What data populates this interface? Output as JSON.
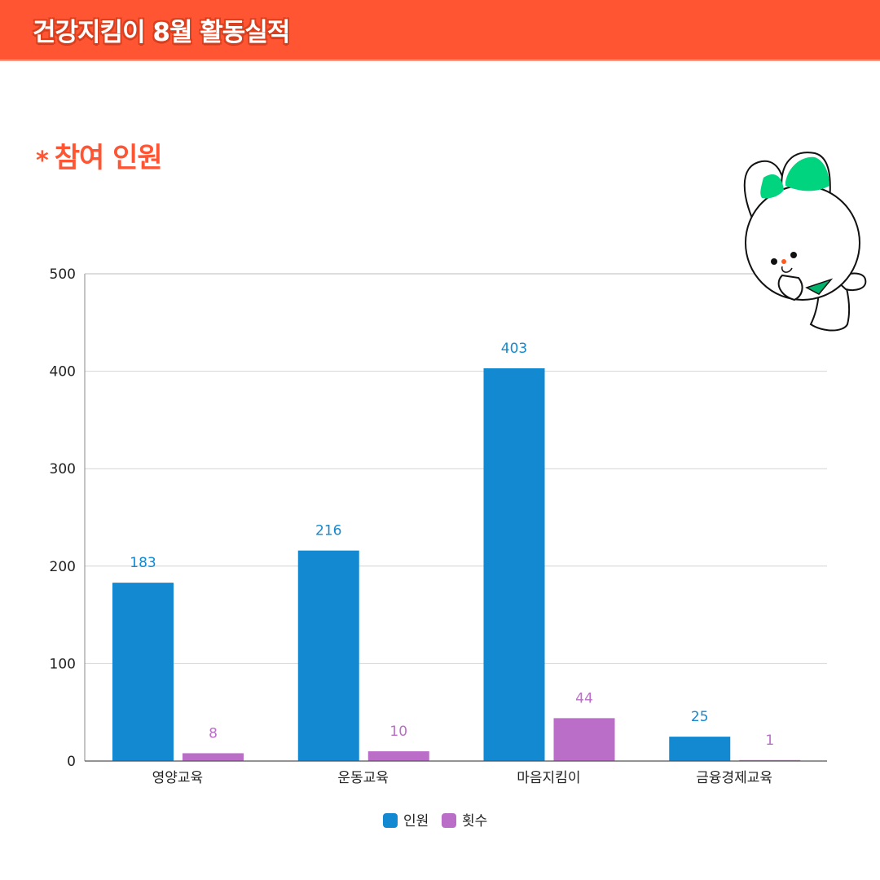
{
  "header": {
    "title": "건강지킴이 8월 활동실적"
  },
  "section": {
    "bullet": "*",
    "title": "참여 인원"
  },
  "colors": {
    "banner": "#ff5533",
    "series_people": "#1289d1",
    "series_count": "#bb6ec8"
  },
  "chart_data": {
    "type": "bar",
    "title": "참여 인원",
    "categories": [
      "영양교육",
      "운동교육",
      "마음지킴이",
      "금융경제교육"
    ],
    "series": [
      {
        "name": "인원",
        "values": [
          183,
          216,
          403,
          25
        ],
        "color": "#1289d1"
      },
      {
        "name": "횟수",
        "values": [
          8,
          10,
          44,
          1
        ],
        "color": "#bb6ec8"
      }
    ],
    "yticks": [
      0,
      100,
      200,
      300,
      400,
      500
    ],
    "ylim": [
      0,
      500
    ],
    "grid": true,
    "legend": "bottom-center",
    "xlabel": "",
    "ylabel": ""
  }
}
